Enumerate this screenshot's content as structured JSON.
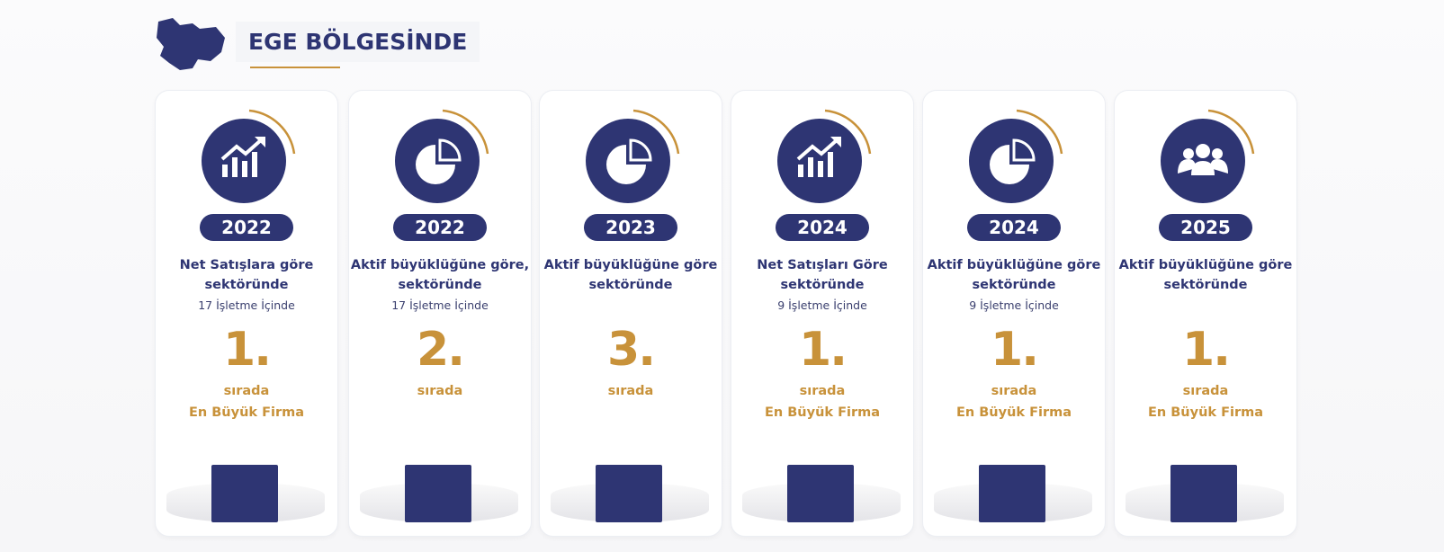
{
  "header": {
    "title": "EGE BÖLGESİNDE"
  },
  "cards": [
    {
      "year": "2022",
      "lines": [
        "Net Satışlara göre",
        "sektöründe"
      ],
      "note": "17 İşletme İçinde",
      "rank": "1.",
      "unit": "sırada",
      "label": "En Büyük Firma"
    },
    {
      "year": "2022",
      "lines": [
        "Aktif büyüklüğüne göre,",
        "sektöründe"
      ],
      "note": "17 İşletme İçinde",
      "rank": "2.",
      "unit": "sırada"
    },
    {
      "year": "2023",
      "lines": [
        "Aktif büyüklüğüne göre",
        "sektöründe"
      ],
      "rank": "3.",
      "unit": "sırada"
    },
    {
      "year": "2024",
      "lines": [
        "Net Satışları Göre",
        "sektöründe"
      ],
      "note": "9 İşletme İçinde",
      "rank": "1.",
      "unit": "sırada",
      "label": "En Büyük Firma"
    },
    {
      "year": "2024",
      "lines": [
        "Aktif büyüklüğüne göre",
        "sektöründe"
      ],
      "note": "9 İşletme İçinde",
      "rank": "1.",
      "unit": "sırada",
      "label": "En Büyük Firma"
    },
    {
      "year": "2025",
      "lines": [
        "Aktif büyüklüğüne göre",
        "sektöründe"
      ],
      "rank": "1.",
      "unit": "sırada",
      "label": "En Büyük Firma"
    }
  ]
}
